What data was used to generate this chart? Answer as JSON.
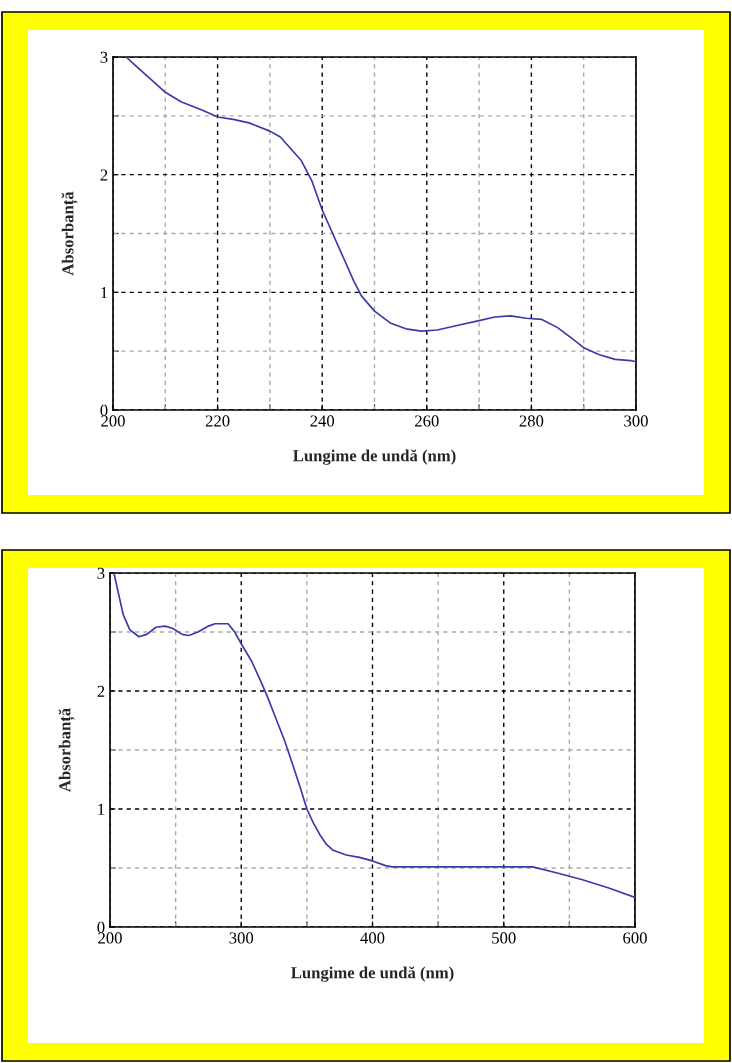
{
  "chart_data": [
    {
      "type": "line",
      "xlabel": "Lungime de undă (nm)",
      "ylabel": "Absorbanță",
      "grid": true,
      "line_style": "solid",
      "marker": "none",
      "xlim": [
        200,
        300
      ],
      "ylim": [
        0,
        3
      ],
      "xticks": [
        200,
        {
          "value": 210,
          "label": null
        },
        220,
        {
          "value": 230,
          "label": null
        },
        240,
        {
          "value": 250,
          "label": null
        },
        260,
        {
          "value": 270,
          "label": null
        },
        280,
        {
          "value": 290,
          "label": null
        },
        300
      ],
      "yticks": [
        0,
        {
          "value": 0.5,
          "label": null
        },
        1,
        {
          "value": 1.5,
          "label": null
        },
        2,
        {
          "value": 2.5,
          "label": null
        },
        3
      ],
      "series": [
        {
          "color": "#3a3aa8",
          "x": [
            202.5,
            205,
            208,
            210,
            213,
            217,
            220,
            223,
            226,
            230,
            232,
            234,
            236,
            238,
            240,
            242,
            244,
            246,
            247.5,
            250,
            253,
            256,
            259,
            262,
            266,
            270,
            273,
            276,
            279,
            282,
            285,
            288,
            290,
            293,
            296,
            299,
            300
          ],
          "values": [
            3.0,
            2.9,
            2.78,
            2.7,
            2.62,
            2.55,
            2.49,
            2.47,
            2.44,
            2.37,
            2.32,
            2.22,
            2.12,
            1.95,
            1.7,
            1.5,
            1.3,
            1.1,
            0.97,
            0.84,
            0.74,
            0.69,
            0.67,
            0.68,
            0.72,
            0.76,
            0.79,
            0.8,
            0.78,
            0.77,
            0.7,
            0.6,
            0.53,
            0.47,
            0.43,
            0.42,
            0.41
          ]
        }
      ]
    },
    {
      "type": "line",
      "xlabel": "Lungime de undă (nm)",
      "ylabel": "Absorbanță",
      "grid": true,
      "line_style": "solid",
      "marker": "none",
      "xlim": [
        200,
        600
      ],
      "ylim": [
        0,
        3
      ],
      "xticks": [
        200,
        {
          "value": 250,
          "label": null
        },
        300,
        {
          "value": 350,
          "label": null
        },
        400,
        {
          "value": 450,
          "label": null
        },
        500,
        {
          "value": 550,
          "label": null
        },
        600
      ],
      "yticks": [
        0,
        {
          "value": 0.5,
          "label": null
        },
        1,
        {
          "value": 1.5,
          "label": null
        },
        2,
        {
          "value": 2.5,
          "label": null
        },
        3
      ],
      "series": [
        {
          "color": "#3a3aa8",
          "x": [
            203,
            207,
            210,
            215,
            222,
            228,
            235,
            242,
            248,
            255,
            260,
            267,
            275,
            280,
            290,
            295,
            300,
            308,
            315,
            320,
            327,
            333,
            340,
            345,
            350,
            355,
            360,
            365,
            370,
            380,
            390,
            400,
            410,
            415,
            450,
            500,
            522,
            540,
            560,
            580,
            600
          ],
          "values": [
            3.0,
            2.8,
            2.65,
            2.52,
            2.46,
            2.48,
            2.54,
            2.55,
            2.53,
            2.48,
            2.47,
            2.5,
            2.55,
            2.57,
            2.57,
            2.5,
            2.4,
            2.25,
            2.08,
            1.95,
            1.75,
            1.58,
            1.35,
            1.18,
            1.0,
            0.88,
            0.78,
            0.7,
            0.65,
            0.61,
            0.59,
            0.56,
            0.52,
            0.51,
            0.51,
            0.51,
            0.51,
            0.46,
            0.4,
            0.33,
            0.25
          ]
        }
      ]
    }
  ]
}
